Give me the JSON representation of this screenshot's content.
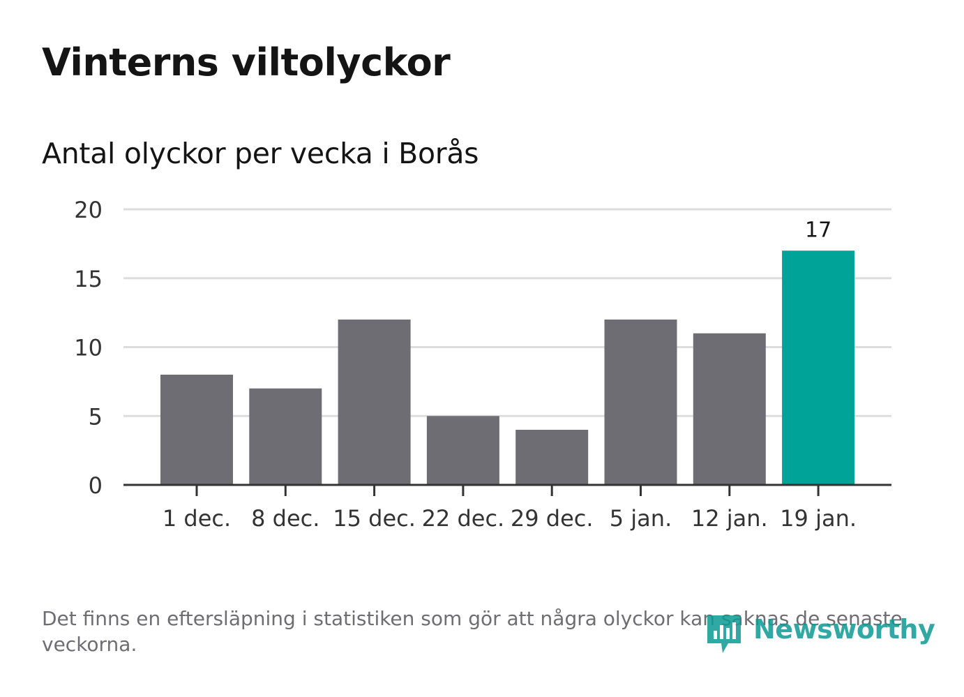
{
  "title": "Vinterns viltolyckor",
  "subtitle": "Antal olyckor per vecka i Borås",
  "footnote": "Det finns en eftersläpning i statistiken som gör att några olyckor kan saknas de senaste veckorna.",
  "logo": {
    "text": "Newsworthy",
    "icon": "bar-chart-speech-bubble-icon"
  },
  "colors": {
    "bar_default": "#6e6d73",
    "bar_highlight": "#00a398",
    "grid": "#dddddd",
    "axis": "#333333",
    "text": "#141414",
    "tick_text": "#333333",
    "logo": "#0c9b95"
  },
  "chart_data": {
    "type": "bar",
    "title": "Vinterns viltolyckor",
    "subtitle": "Antal olyckor per vecka i Borås",
    "categories": [
      "1 dec.",
      "8 dec.",
      "15 dec.",
      "22 dec.",
      "29 dec.",
      "5 jan.",
      "12 jan.",
      "19 jan."
    ],
    "values": [
      8,
      7,
      12,
      5,
      4,
      12,
      11,
      17
    ],
    "highlight_index": 7,
    "data_labels": [
      {
        "index": 7,
        "text": "17"
      }
    ],
    "ylim": [
      0,
      20
    ],
    "yticks": [
      0,
      5,
      10,
      15,
      20
    ],
    "grid": true,
    "xlabel": "",
    "ylabel": ""
  }
}
